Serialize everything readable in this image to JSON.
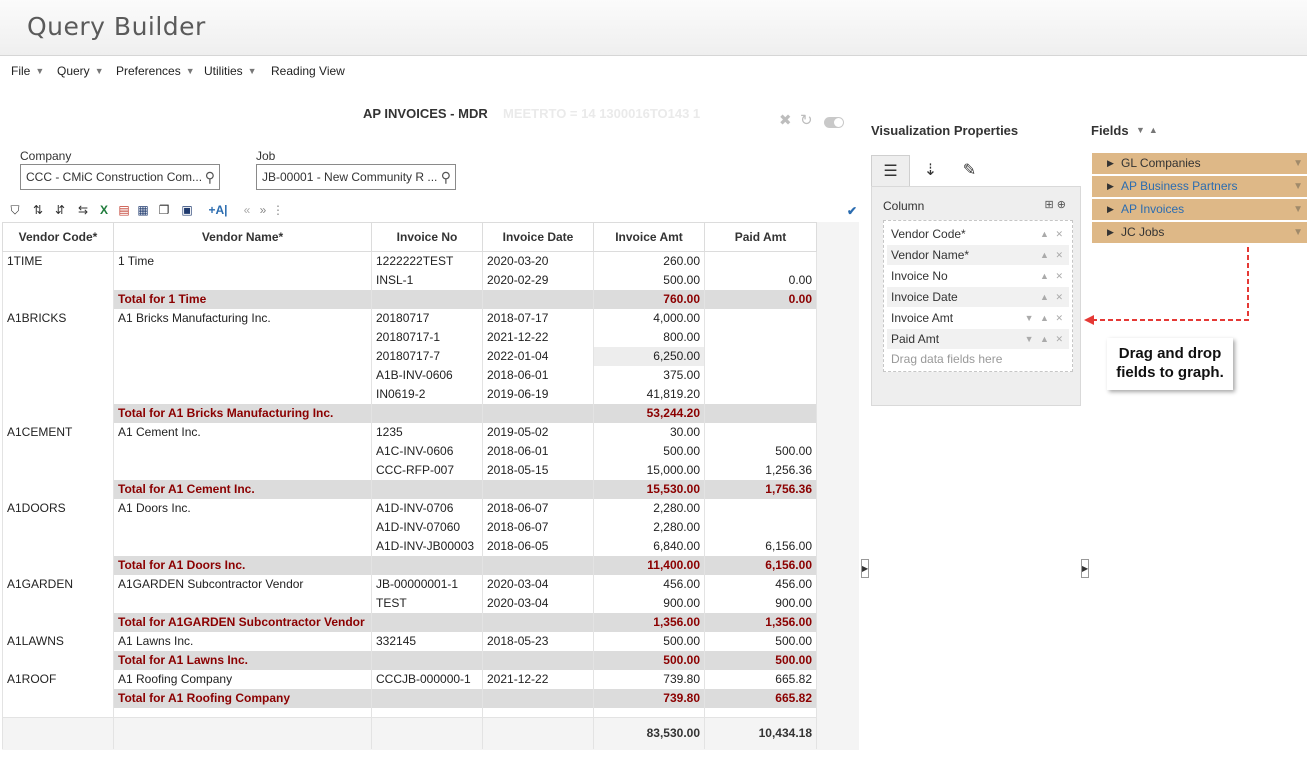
{
  "app": {
    "title": "Query Builder"
  },
  "menu": [
    {
      "label": "File",
      "has_caret": true
    },
    {
      "label": "Query",
      "has_caret": true
    },
    {
      "label": "Preferences",
      "has_caret": true
    },
    {
      "label": "Utilities",
      "has_caret": true
    },
    {
      "label": "Reading View",
      "has_caret": false
    }
  ],
  "report": {
    "title": "AP INVOICES - MDR",
    "ghost_text": "MEETRTO = 14 1300016TO143 1"
  },
  "filters": {
    "company": {
      "label": "Company",
      "value": "CCC - CMiC Construction Com..."
    },
    "job": {
      "label": "Job",
      "value": "JB-00001 - New Community R ..."
    }
  },
  "toolbar_icons": [
    "filter-icon",
    "sort-ascending-icon",
    "sort-descending-icon",
    "group-icon",
    "excel-export-icon",
    "pdf-export-icon",
    "calendar-icon",
    "copy-icon",
    "layout-icon",
    "add-field-icon",
    "first-page-icon",
    "last-page-icon",
    "more-icon"
  ],
  "grid": {
    "columns": [
      "Vendor Code*",
      "Vendor Name*",
      "Invoice No",
      "Invoice Date",
      "Invoice Amt",
      "Paid Amt"
    ],
    "rows": [
      {
        "type": "data",
        "cells": [
          "1TIME",
          "1 Time",
          "1222222TEST",
          "2020-03-20",
          "260.00",
          ""
        ]
      },
      {
        "type": "data",
        "cells": [
          "",
          "",
          "INSL-1",
          "2020-02-29",
          "500.00",
          "0.00"
        ]
      },
      {
        "type": "total",
        "cells": [
          "",
          "Total for 1 Time",
          "",
          "",
          "760.00",
          "0.00"
        ]
      },
      {
        "type": "data",
        "cells": [
          "A1BRICKS",
          "A1 Bricks Manufacturing Inc.",
          "20180717",
          "2018-07-17",
          "4,000.00",
          ""
        ]
      },
      {
        "type": "data",
        "cells": [
          "",
          "",
          "20180717-1",
          "2021-12-22",
          "800.00",
          ""
        ]
      },
      {
        "type": "data",
        "highlight": 4,
        "cells": [
          "",
          "",
          "20180717-7",
          "2022-01-04",
          "6,250.00",
          ""
        ]
      },
      {
        "type": "data",
        "cells": [
          "",
          "",
          "A1B-INV-0606",
          "2018-06-01",
          "375.00",
          ""
        ]
      },
      {
        "type": "data",
        "cells": [
          "",
          "",
          "IN0619-2",
          "2019-06-19",
          "41,819.20",
          ""
        ]
      },
      {
        "type": "total",
        "cells": [
          "",
          "Total for A1 Bricks Manufacturing Inc.",
          "",
          "",
          "53,244.20",
          ""
        ]
      },
      {
        "type": "data",
        "cells": [
          "A1CEMENT",
          "A1 Cement Inc.",
          "1235",
          "2019-05-02",
          "30.00",
          ""
        ]
      },
      {
        "type": "data",
        "cells": [
          "",
          "",
          "A1C-INV-0606",
          "2018-06-01",
          "500.00",
          "500.00"
        ]
      },
      {
        "type": "data",
        "cells": [
          "",
          "",
          "CCC-RFP-007",
          "2018-05-15",
          "15,000.00",
          "1,256.36"
        ]
      },
      {
        "type": "total",
        "cells": [
          "",
          "Total for A1 Cement Inc.",
          "",
          "",
          "15,530.00",
          "1,756.36"
        ]
      },
      {
        "type": "data",
        "cells": [
          "A1DOORS",
          "A1 Doors Inc.",
          "A1D-INV-0706",
          "2018-06-07",
          "2,280.00",
          ""
        ]
      },
      {
        "type": "data",
        "cells": [
          "",
          "",
          "A1D-INV-07060",
          "2018-06-07",
          "2,280.00",
          ""
        ]
      },
      {
        "type": "data",
        "cells": [
          "",
          "",
          "A1D-INV-JB00003",
          "2018-06-05",
          "6,840.00",
          "6,156.00"
        ]
      },
      {
        "type": "total",
        "cells": [
          "",
          "Total for A1 Doors Inc.",
          "",
          "",
          "11,400.00",
          "6,156.00"
        ]
      },
      {
        "type": "data",
        "cells": [
          "A1GARDEN",
          "A1GARDEN Subcontractor Vendor",
          "JB-00000001-1",
          "2020-03-04",
          "456.00",
          "456.00"
        ]
      },
      {
        "type": "data",
        "cells": [
          "",
          "",
          "TEST",
          "2020-03-04",
          "900.00",
          "900.00"
        ]
      },
      {
        "type": "total",
        "cells": [
          "",
          "Total for A1GARDEN Subcontractor Vendor",
          "",
          "",
          "1,356.00",
          "1,356.00"
        ]
      },
      {
        "type": "data",
        "cells": [
          "A1LAWNS",
          "A1 Lawns Inc.",
          "332145",
          "2018-05-23",
          "500.00",
          "500.00"
        ]
      },
      {
        "type": "total",
        "cells": [
          "",
          "Total for A1 Lawns Inc.",
          "",
          "",
          "500.00",
          "500.00"
        ]
      },
      {
        "type": "data",
        "cells": [
          "A1ROOF",
          "A1 Roofing Company",
          "CCCJB-000000-1",
          "2021-12-22",
          "739.80",
          "665.82"
        ]
      },
      {
        "type": "total",
        "cells": [
          "",
          "Total for A1 Roofing Company",
          "",
          "",
          "739.80",
          "665.82"
        ]
      }
    ],
    "grand_total": [
      "",
      "",
      "",
      "",
      "83,530.00",
      "10,434.18"
    ]
  },
  "visualization": {
    "title": "Visualization Properties",
    "column_label": "Column",
    "columns": [
      {
        "label": "Vendor Code*",
        "controls": "▲ ✕"
      },
      {
        "label": "Vendor Name*",
        "controls": "▲ ✕"
      },
      {
        "label": "Invoice No",
        "controls": "▲ ✕"
      },
      {
        "label": "Invoice Date",
        "controls": "▲ ✕"
      },
      {
        "label": "Invoice Amt",
        "controls": "▼ ▲ ✕"
      },
      {
        "label": "Paid Amt",
        "controls": "▼ ▲ ✕"
      }
    ],
    "drop_hint": "Drag data fields here"
  },
  "fields": {
    "title": "Fields",
    "items": [
      {
        "label": "GL Companies",
        "link": false
      },
      {
        "label": "AP Business Partners",
        "link": true
      },
      {
        "label": "AP Invoices",
        "link": true
      },
      {
        "label": "JC Jobs",
        "link": false
      }
    ]
  },
  "callout": {
    "line1": "Drag and drop",
    "line2": "fields to graph."
  }
}
